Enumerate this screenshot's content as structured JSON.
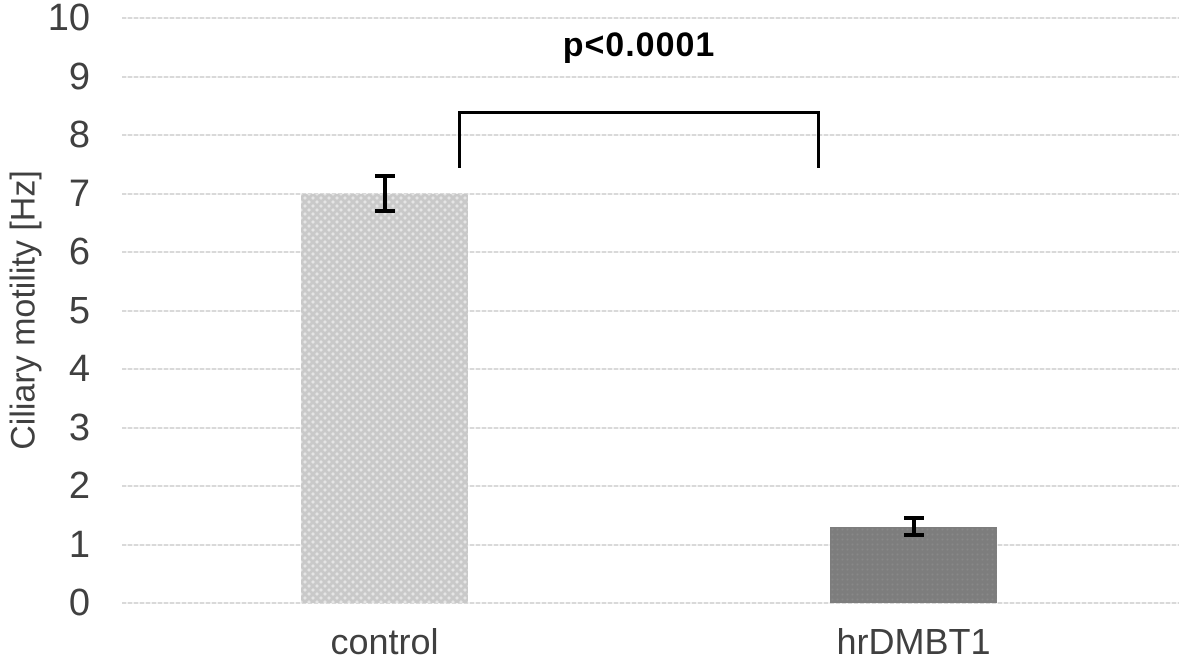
{
  "chart_data": {
    "type": "bar",
    "title": "",
    "categories": [
      "control",
      "hrDMBT1"
    ],
    "values": [
      7.0,
      1.3
    ],
    "errors": [
      0.33,
      0.18
    ],
    "xlabel": "",
    "ylabel": "Ciliary motility [Hz]",
    "ylim": [
      0,
      10
    ],
    "yticks": [
      0,
      1,
      2,
      3,
      4,
      5,
      6,
      7,
      8,
      9,
      10
    ],
    "grid": true,
    "legend": false,
    "bar_patterns": [
      "light-dotted",
      "dark-subtle"
    ],
    "bar_colors": [
      "#c9c9c9",
      "#7d7d7d"
    ],
    "annotation": {
      "text": "p<0.0001",
      "connects": [
        "control",
        "hrDMBT1"
      ]
    }
  },
  "colors": {
    "gridline": "#d9d9d9",
    "axis_text": "#404040",
    "annotation_text": "#000000",
    "error_bar": "#000000",
    "background": "#ffffff"
  }
}
